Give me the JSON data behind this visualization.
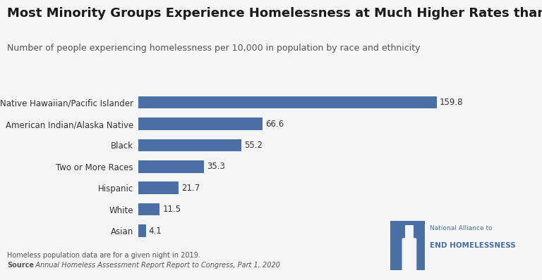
{
  "title": "Most Minority Groups Experience Homelessness at Much Higher Rates than Whites",
  "subtitle": "Number of people experiencing homelessness per 10,000 in population by race and ethnicity",
  "categories": [
    "Native Hawaiian/Pacific Islander",
    "American Indian/Alaska Native",
    "Black",
    "Two or More Races",
    "Hispanic",
    "White",
    "Asian"
  ],
  "values": [
    159.8,
    66.6,
    55.2,
    35.3,
    21.7,
    11.5,
    4.1
  ],
  "bar_color": "#4a6fa5",
  "background_color": "#f5f5f5",
  "footnote_line1": "Homeless population data are for a given night in 2019.",
  "footnote_line2_bold": "Source",
  "footnote_line2_rest": ": Annual Homeless Assessment Report Report to Congress, Part 1, 2020",
  "xlim": [
    0,
    180
  ],
  "title_fontsize": 13,
  "subtitle_fontsize": 9,
  "label_fontsize": 8.5,
  "value_fontsize": 8.5,
  "footnote_fontsize": 7
}
